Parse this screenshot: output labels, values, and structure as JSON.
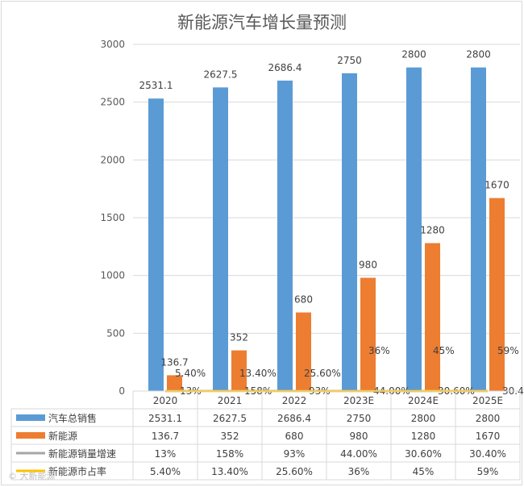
{
  "chart_data": {
    "type": "bar",
    "title": "新能源汽车增长量预测",
    "categories": [
      "2020",
      "2021",
      "2022",
      "2023E",
      "2024E",
      "2025E"
    ],
    "ylim": [
      0,
      3000
    ],
    "yticks": [
      0,
      500,
      1000,
      1500,
      2000,
      2500,
      3000
    ],
    "grid": true,
    "legend": "bottom-table",
    "series": [
      {
        "name": "汽车总销售",
        "type": "bar",
        "color": "#5b9bd5",
        "values": [
          2531.1,
          2627.5,
          2686.4,
          2750,
          2800,
          2800
        ],
        "labels": [
          "2531.1",
          "2627.5",
          "2686.4",
          "2750",
          "2800",
          "2800"
        ]
      },
      {
        "name": "新能源",
        "type": "bar",
        "color": "#ed7d31",
        "values": [
          136.7,
          352,
          680,
          980,
          1280,
          1670
        ],
        "labels": [
          "136.7",
          "352",
          "680",
          "980",
          "1280",
          "1670"
        ]
      },
      {
        "name": "新能源销量增速",
        "type": "line",
        "color": "#a5a5a5",
        "values": [
          13,
          158,
          93,
          44,
          30.6,
          30.4
        ],
        "labels": [
          "13%",
          "158%",
          "93%",
          "44.00%",
          "30.60%",
          "30.40%"
        ]
      },
      {
        "name": "新能源市占率",
        "type": "line",
        "color": "#ffc000",
        "values": [
          5.4,
          13.4,
          25.6,
          36,
          45,
          59
        ],
        "labels": [
          "5.40%",
          "13.40%",
          "25.60%",
          "36%",
          "45%",
          "59%"
        ]
      }
    ]
  },
  "watermark": "© 大新能源"
}
